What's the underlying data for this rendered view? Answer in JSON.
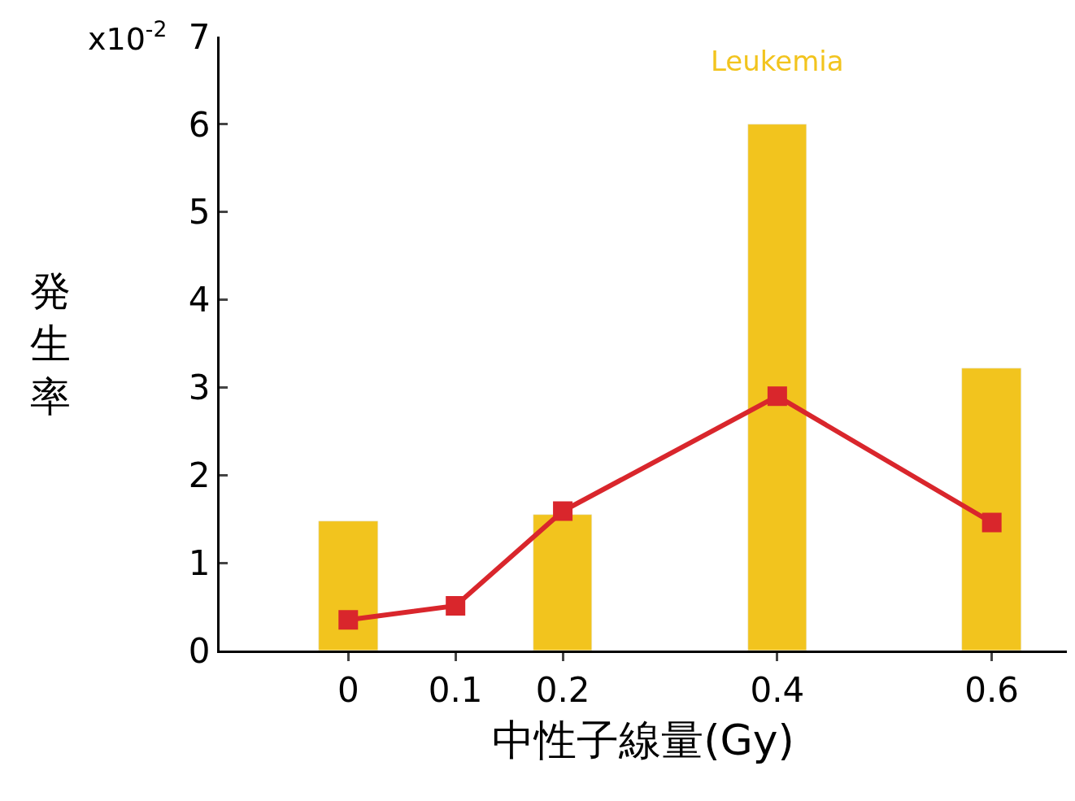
{
  "chart_data": {
    "type": "bar",
    "xlabel": "中性子線量(Gy)",
    "ylabel": "発生率",
    "annotations": [
      "x10$^{-2}$"
    ],
    "xlim": [
      -0.12,
      0.67
    ],
    "xticks": [
      0,
      0.1,
      0.2,
      0.4,
      0.6
    ],
    "ylim": [
      0,
      7
    ],
    "yticks": [
      0,
      1,
      2,
      3,
      4,
      5,
      6,
      7
    ],
    "marker": "square",
    "line_style": "solid",
    "series": [
      {
        "name": "Leukemia",
        "color": "#f2c41e",
        "x": [
          0,
          0.2,
          0.4,
          0.6
        ],
        "values": [
          1.47,
          1.55,
          6.0,
          3.22
        ]
      },
      {
        "type": "line",
        "color": "#d9262c",
        "x": [
          0,
          0.1,
          0.2,
          0.4,
          0.6
        ],
        "values": [
          0.35,
          0.51,
          1.59,
          2.9,
          1.46
        ]
      }
    ]
  }
}
